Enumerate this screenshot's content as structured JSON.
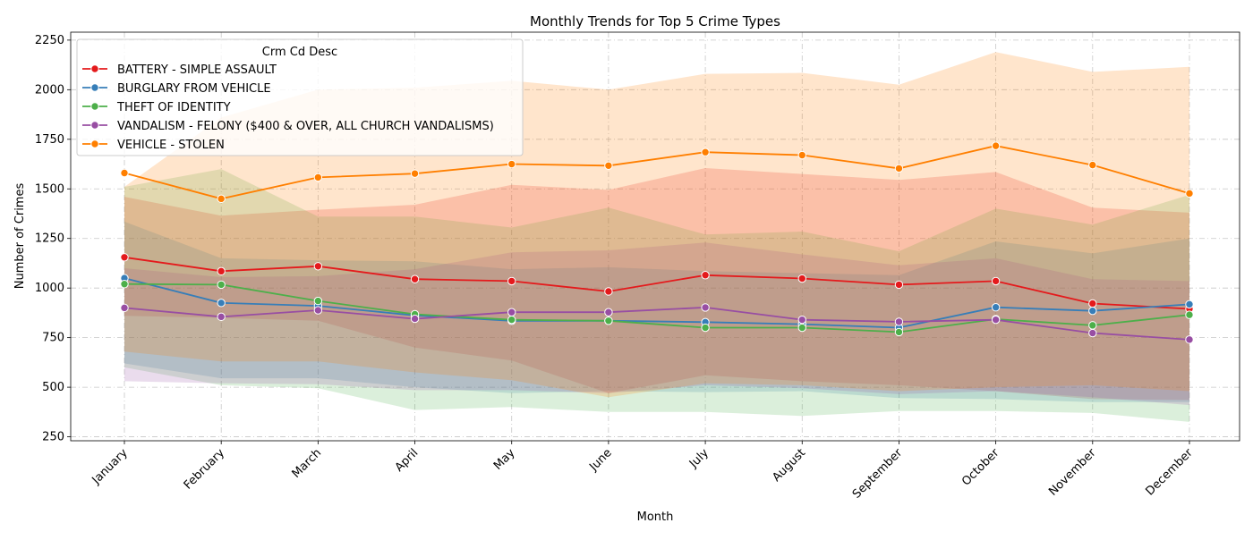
{
  "chart_data": {
    "type": "line",
    "title": "Monthly Trends for Top 5 Crime Types",
    "xlabel": "Month",
    "ylabel": "Number of Crimes",
    "legend_title": "Crm Cd Desc",
    "legend_position": "top-left",
    "grid": true,
    "ylim": [
      230,
      2290
    ],
    "yticks": [
      250,
      500,
      750,
      1000,
      1250,
      1500,
      1750,
      2000,
      2250
    ],
    "categories": [
      "January",
      "February",
      "March",
      "April",
      "May",
      "June",
      "July",
      "August",
      "September",
      "October",
      "November",
      "December"
    ],
    "series": [
      {
        "name": "BATTERY - SIMPLE ASSAULT",
        "color": "#e41a1c",
        "values": [
          1155,
          1085,
          1110,
          1045,
          1035,
          983,
          1065,
          1048,
          1017,
          1035,
          922,
          895
        ],
        "upper": [
          1460,
          1365,
          1395,
          1420,
          1520,
          1495,
          1605,
          1575,
          1545,
          1585,
          1405,
          1380
        ],
        "lower": [
          860,
          850,
          835,
          700,
          635,
          470,
          560,
          530,
          510,
          480,
          440,
          435
        ]
      },
      {
        "name": "BURGLARY FROM VEHICLE",
        "color": "#377eb8",
        "values": [
          1050,
          925,
          910,
          862,
          835,
          835,
          828,
          818,
          800,
          903,
          885,
          918
        ],
        "upper": [
          1335,
          1150,
          1140,
          1135,
          1095,
          1105,
          1085,
          1075,
          1065,
          1235,
          1175,
          1250
        ],
        "lower": [
          620,
          545,
          545,
          500,
          470,
          480,
          475,
          480,
          445,
          440,
          425,
          425
        ]
      },
      {
        "name": "THEFT OF IDENTITY",
        "color": "#4daf4a",
        "values": [
          1020,
          1017,
          935,
          868,
          840,
          835,
          800,
          800,
          778,
          843,
          812,
          865
        ],
        "upper": [
          1510,
          1600,
          1360,
          1360,
          1305,
          1405,
          1270,
          1285,
          1185,
          1400,
          1320,
          1470
        ],
        "lower": [
          600,
          510,
          495,
          385,
          400,
          375,
          375,
          355,
          380,
          380,
          370,
          325
        ]
      },
      {
        "name": "VANDALISM - FELONY ($400 & OVER, ALL CHURCH VANDALISMS)",
        "color": "#984ea3",
        "values": [
          900,
          855,
          888,
          845,
          878,
          878,
          902,
          840,
          830,
          840,
          773,
          740
        ],
        "upper": [
          1100,
          1055,
          1060,
          1095,
          1180,
          1190,
          1230,
          1170,
          1115,
          1150,
          1045,
          1035
        ],
        "lower": [
          530,
          520,
          515,
          485,
          485,
          470,
          510,
          495,
          465,
          480,
          450,
          410
        ]
      },
      {
        "name": "VEHICLE - STOLEN",
        "color": "#ff7f00",
        "values": [
          1580,
          1450,
          1558,
          1577,
          1625,
          1617,
          1685,
          1670,
          1603,
          1717,
          1620,
          1477
        ],
        "upper": [
          1510,
          1860,
          2000,
          2010,
          2045,
          2000,
          2080,
          2085,
          2025,
          2190,
          2090,
          2115
        ],
        "lower": [
          680,
          630,
          630,
          575,
          535,
          450,
          520,
          510,
          480,
          500,
          510,
          480
        ]
      }
    ]
  }
}
